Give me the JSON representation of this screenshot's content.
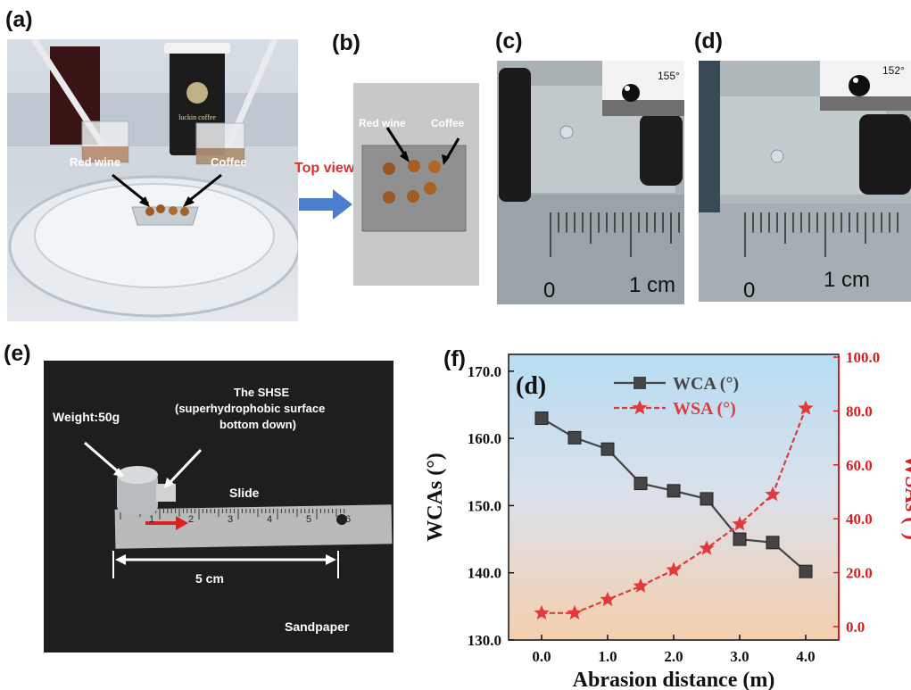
{
  "panels": {
    "a": {
      "label": "(a)",
      "red_wine": "Red wine",
      "coffee": "Coffee",
      "cup_brand": "luckin coffee"
    },
    "arrow_text": "Top view",
    "b": {
      "label": "(b)",
      "red_wine": "Red wine",
      "coffee": "Coffee"
    },
    "c": {
      "label": "(c)",
      "angle": "155°",
      "ruler_zero": "0",
      "ruler_cm": "1 cm"
    },
    "d": {
      "label": "(d)",
      "angle": "152°",
      "ruler_zero": "0",
      "ruler_cm": "1 cm"
    },
    "e": {
      "label": "(e)",
      "weight": "Weight:50g",
      "shse_line1": "The SHSE",
      "shse_line2": "(superhydrophobic surface",
      "shse_line3": "bottom down)",
      "slide": "Slide",
      "distance": "5 cm",
      "sandpaper": "Sandpaper",
      "ruler_numbers": [
        "1",
        "2",
        "3",
        "4",
        "5",
        "6"
      ]
    },
    "f": {
      "label": "(f)",
      "inner_label": "(d)"
    }
  },
  "colors": {
    "wca": "#454545",
    "wsa": "#e03a3a",
    "right_axis": "#d42020",
    "arrow_blue": "#4a7fd0",
    "top_view_text": "#d93030"
  },
  "chart_data": {
    "type": "line",
    "x": [
      0.0,
      0.5,
      1.0,
      1.5,
      2.0,
      2.5,
      3.0,
      3.5,
      4.0
    ],
    "xlabel": "Abrasion distance (m)",
    "xlim": [
      -0.5,
      4.5
    ],
    "xticks": [
      "0.0",
      "1.0",
      "2.0",
      "3.0",
      "4.0"
    ],
    "ylabel_left": "WCAs (°)",
    "ylim_left": [
      130,
      172.5
    ],
    "yticks_left": [
      "130.0",
      "140.0",
      "150.0",
      "160.0",
      "170.0"
    ],
    "ylabel_right": "WSAs (°)",
    "ylim_right": [
      -5,
      101
    ],
    "yticks_right": [
      "0.0",
      "20.0",
      "40.0",
      "60.0",
      "80.0",
      "100.0"
    ],
    "background": "gradient light blue (top) to peach (bottom)",
    "legend_position": "top-center",
    "series": [
      {
        "name": "WCA (°)",
        "axis": "left",
        "marker": "square",
        "values": [
          163.0,
          160.1,
          158.4,
          153.3,
          152.2,
          151.0,
          145.0,
          144.5,
          140.2
        ]
      },
      {
        "name": "WSA (°)",
        "axis": "right",
        "marker": "star",
        "values": [
          5.0,
          5.0,
          10.0,
          15.0,
          21.0,
          29.0,
          38.0,
          49.0,
          81.0
        ]
      }
    ]
  }
}
